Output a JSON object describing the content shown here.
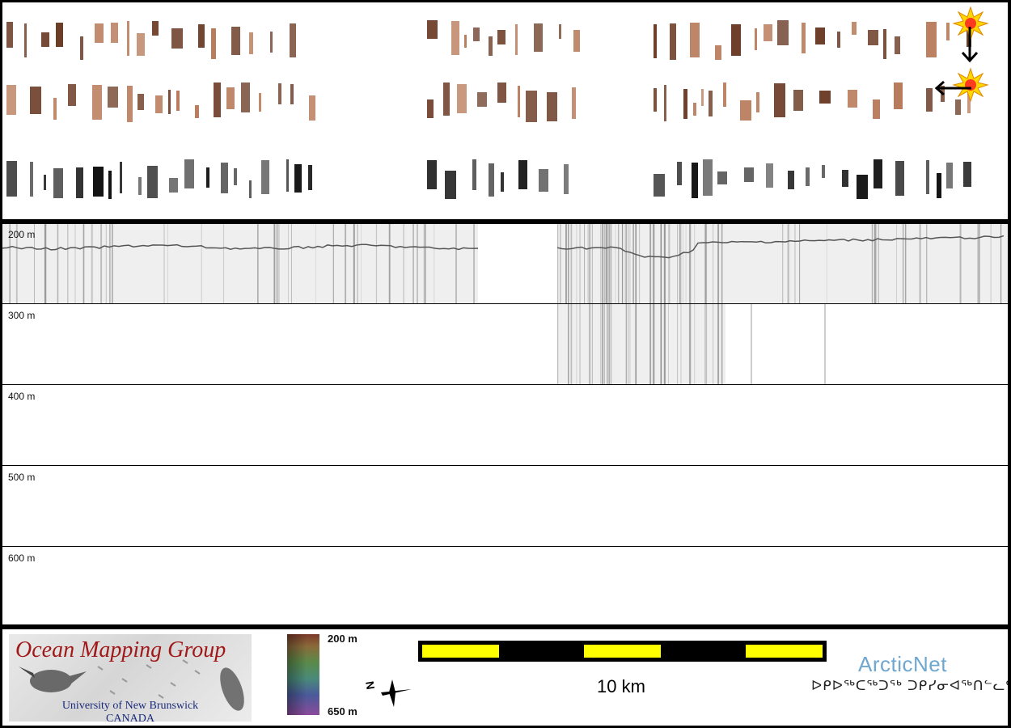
{
  "seismic_rows": {
    "row_count": 3,
    "color_fill": "#b87a5a",
    "color_dark": "#6a3a24",
    "bw_color": "#111111"
  },
  "markers": {
    "sun_icon": "starburst-sun-icon",
    "arrow_down": "arrow-down-icon",
    "arrow_left": "arrow-left-icon",
    "sun_color": "#ffd700",
    "sun_core_color": "#ff3b1f"
  },
  "profile": {
    "depth_labels": [
      "200 m",
      "300 m",
      "400 m",
      "500 m",
      "600 m"
    ],
    "fill_color": "#efefef",
    "trace_color": "#7a7a7a"
  },
  "footer": {
    "logo": {
      "title": "Ocean Mapping Group",
      "university": "University of New Brunswick",
      "country": "CANADA",
      "title_color": "#a01818",
      "text_color": "#1a2a7a"
    },
    "colorbar": {
      "top_label": "200 m",
      "bottom_label": "650 m"
    },
    "north_arrow": {
      "letter": "N"
    },
    "scale": {
      "label": "10 km",
      "bar_color": "#000000",
      "segment_color": "#ffff00"
    },
    "partner": {
      "name": "ArcticNet",
      "inuktitut": "ᐅᑭᐅᖅᑕᖅᑐᕐᒃ ᑐᑭᓯᓂᐊᖅᑎᓪᓚᑦ",
      "name_color": "#6fa7cf"
    }
  }
}
